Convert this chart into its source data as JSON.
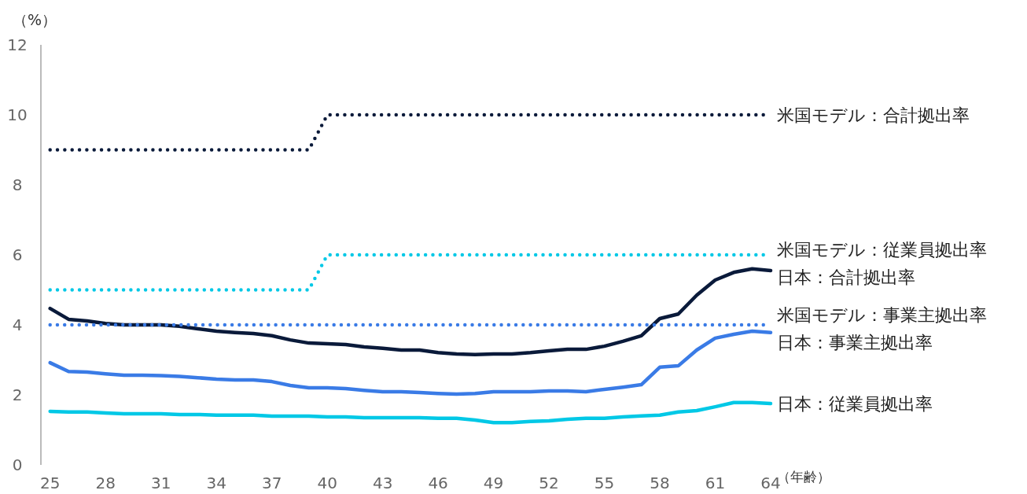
{
  "chart_data": {
    "type": "line",
    "ylabel": "（%）",
    "xlabel": "（年齢）",
    "x": [
      25,
      26,
      27,
      28,
      29,
      30,
      31,
      32,
      33,
      34,
      35,
      36,
      37,
      38,
      39,
      40,
      41,
      42,
      43,
      44,
      45,
      46,
      47,
      48,
      49,
      50,
      51,
      52,
      53,
      54,
      55,
      56,
      57,
      58,
      59,
      60,
      61,
      62,
      63,
      64
    ],
    "xlim": [
      24.5,
      64
    ],
    "xticks": [
      25,
      28,
      31,
      34,
      37,
      40,
      43,
      46,
      49,
      52,
      55,
      58,
      61,
      64
    ],
    "ylim": [
      0,
      12
    ],
    "yticks": [
      0,
      2,
      4,
      6,
      8,
      10,
      12
    ],
    "grid": false,
    "series": [
      {
        "name": "米国モデル：合計拠出率",
        "color": "#0a1a3a",
        "line_style": "dotted",
        "values": [
          9,
          9,
          9,
          9,
          9,
          9,
          9,
          9,
          9,
          9,
          9,
          9,
          9,
          9,
          9,
          10,
          10,
          10,
          10,
          10,
          10,
          10,
          10,
          10,
          10,
          10,
          10,
          10,
          10,
          10,
          10,
          10,
          10,
          10,
          10,
          10,
          10,
          10,
          10,
          10
        ]
      },
      {
        "name": "米国モデル：従業員拠出率",
        "color": "#00c8e6",
        "line_style": "dotted",
        "values": [
          5,
          5,
          5,
          5,
          5,
          5,
          5,
          5,
          5,
          5,
          5,
          5,
          5,
          5,
          5,
          6,
          6,
          6,
          6,
          6,
          6,
          6,
          6,
          6,
          6,
          6,
          6,
          6,
          6,
          6,
          6,
          6,
          6,
          6,
          6,
          6,
          6,
          6,
          6,
          6
        ]
      },
      {
        "name": "日本：合計拠出率",
        "color": "#0a1a3a",
        "line_style": "solid",
        "values": [
          4.47,
          4.16,
          4.11,
          4.04,
          4.0,
          4.0,
          4.0,
          3.96,
          3.89,
          3.82,
          3.78,
          3.75,
          3.69,
          3.57,
          3.48,
          3.46,
          3.44,
          3.37,
          3.33,
          3.28,
          3.28,
          3.21,
          3.17,
          3.15,
          3.17,
          3.17,
          3.21,
          3.26,
          3.3,
          3.3,
          3.39,
          3.53,
          3.69,
          4.18,
          4.31,
          4.85,
          5.28,
          5.5,
          5.6,
          5.55
        ]
      },
      {
        "name": "米国モデル：事業主拠出率",
        "color": "#3a7be6",
        "line_style": "dotted",
        "values": [
          4,
          4,
          4,
          4,
          4,
          4,
          4,
          4,
          4,
          4,
          4,
          4,
          4,
          4,
          4,
          4,
          4,
          4,
          4,
          4,
          4,
          4,
          4,
          4,
          4,
          4,
          4,
          4,
          4,
          4,
          4,
          4,
          4,
          4,
          4,
          4,
          4,
          4,
          4,
          4
        ]
      },
      {
        "name": "日本：事業主拠出率",
        "color": "#3a7be6",
        "line_style": "solid",
        "values": [
          2.92,
          2.67,
          2.65,
          2.6,
          2.56,
          2.56,
          2.55,
          2.53,
          2.49,
          2.45,
          2.43,
          2.43,
          2.38,
          2.27,
          2.2,
          2.2,
          2.18,
          2.13,
          2.09,
          2.09,
          2.07,
          2.04,
          2.02,
          2.04,
          2.09,
          2.09,
          2.09,
          2.11,
          2.11,
          2.09,
          2.16,
          2.22,
          2.29,
          2.79,
          2.83,
          3.28,
          3.62,
          3.73,
          3.82,
          3.78
        ]
      },
      {
        "name": "日本：従業員拠出率",
        "color": "#00c8e6",
        "line_style": "solid",
        "values": [
          1.53,
          1.51,
          1.51,
          1.48,
          1.46,
          1.46,
          1.46,
          1.44,
          1.44,
          1.42,
          1.42,
          1.42,
          1.39,
          1.39,
          1.39,
          1.37,
          1.37,
          1.35,
          1.35,
          1.35,
          1.35,
          1.33,
          1.33,
          1.28,
          1.21,
          1.21,
          1.24,
          1.26,
          1.3,
          1.33,
          1.33,
          1.37,
          1.4,
          1.42,
          1.51,
          1.55,
          1.66,
          1.78,
          1.78,
          1.75
        ]
      }
    ]
  }
}
